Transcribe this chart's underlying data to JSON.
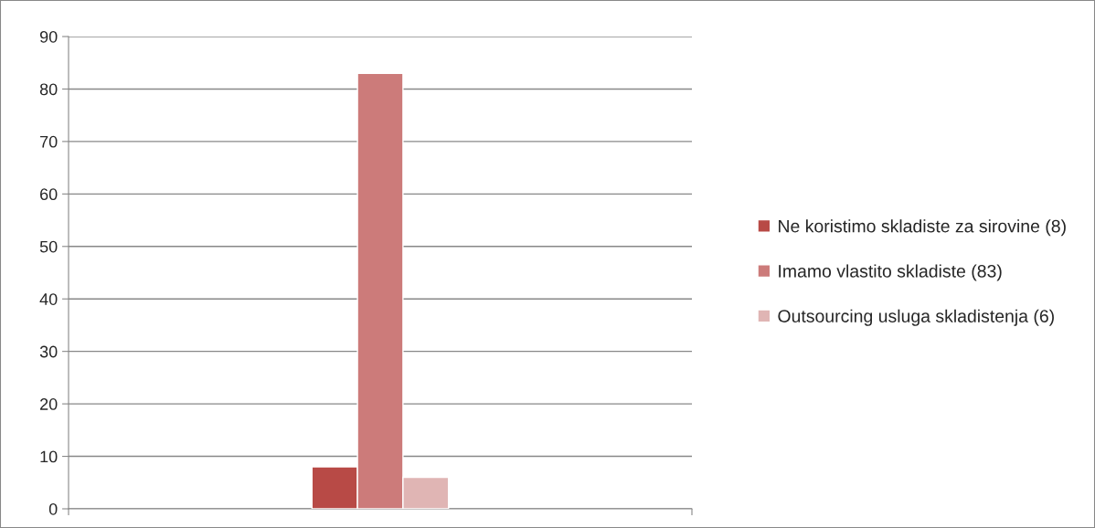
{
  "chart_data": {
    "type": "bar",
    "categories": [
      null
    ],
    "series": [
      {
        "name": "Ne koristimo skladiste za sirovine (8)",
        "color": "#b84a46",
        "values": [
          8
        ]
      },
      {
        "name": "Imamo vlastito skladiste (83)",
        "color": "#cc7b7a",
        "values": [
          83
        ]
      },
      {
        "name": "Outsourcing usluga skladistenja (6)",
        "color": "#e0b5b4",
        "values": [
          6
        ]
      }
    ],
    "ylim": [
      0,
      90
    ],
    "yticks": [
      0,
      10,
      20,
      30,
      40,
      50,
      60,
      70,
      80,
      90
    ],
    "grid": "y",
    "legend": "right"
  }
}
